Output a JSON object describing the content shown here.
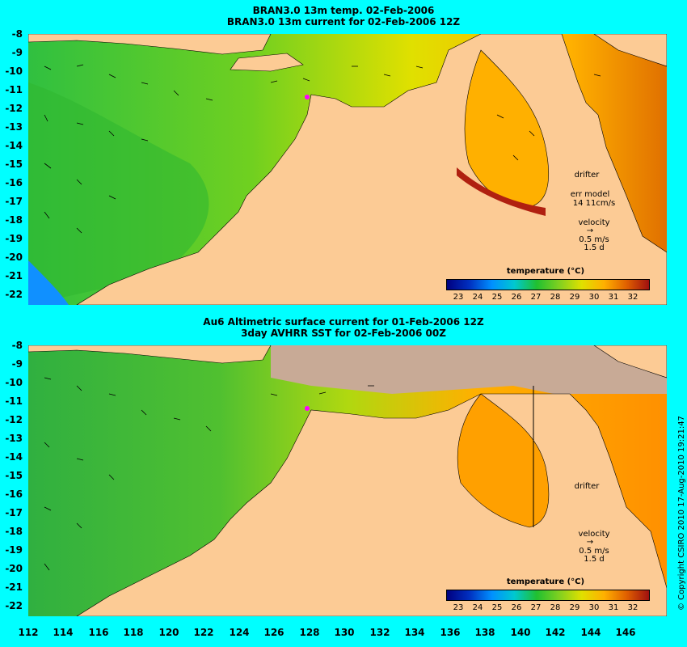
{
  "top_panel": {
    "title_line1": "BRAN3.0 13m temp. 02-Feb-2006",
    "title_line2": "BRAN3.0 13m current for 02-Feb-2006 12Z",
    "drifter_label": "drifter",
    "err_model_label": "err model",
    "err_model_value": "14 11cm/s",
    "velocity_label": "velocity",
    "velocity_scale": "0.5 m/s",
    "velocity_time": "1.5 d",
    "colorbar_title": "temperature (°C)",
    "colorbar_ticks": [
      "23",
      "24",
      "25",
      "26",
      "27",
      "28",
      "29",
      "30",
      "31",
      "32"
    ]
  },
  "bottom_panel": {
    "title_line1": "Au6 Altimetric surface current for 01-Feb-2006 12Z",
    "title_line2": "3day AVHRR SST for 02-Feb-2006 00Z",
    "drifter_label": "drifter",
    "velocity_label": "velocity",
    "velocity_scale": "0.5 m/s",
    "velocity_time": "1.5 d",
    "colorbar_title": "temperature (°C)",
    "colorbar_ticks": [
      "23",
      "24",
      "25",
      "26",
      "27",
      "28",
      "29",
      "30",
      "31",
      "32"
    ]
  },
  "latitude_labels": [
    "-8",
    "-9",
    "-10",
    "-11",
    "-12",
    "-13",
    "-14",
    "-15",
    "-16",
    "-17",
    "-18",
    "-19",
    "-20",
    "-21",
    "-22"
  ],
  "longitude_labels": [
    "112",
    "114",
    "116",
    "118",
    "120",
    "122",
    "124",
    "126",
    "128",
    "130",
    "132",
    "134",
    "136",
    "138",
    "140",
    "142",
    "144",
    "146"
  ],
  "copyright": "© Copyright CSIRO 2010   17-Aug-2010 19:21:47",
  "colors": {
    "page_background": "#00ffff",
    "land": "#fccb95",
    "cloud": "#c8aa96",
    "colorbar_stops": [
      "#000080",
      "#0030c0",
      "#0090ff",
      "#00c8d0",
      "#20c030",
      "#80d020",
      "#e0e000",
      "#ffb000",
      "#e06000",
      "#a01010"
    ]
  }
}
